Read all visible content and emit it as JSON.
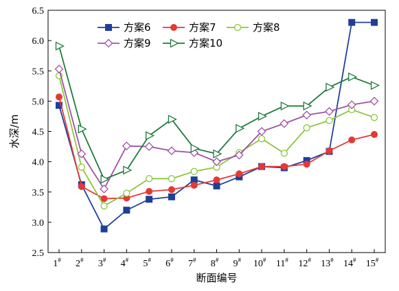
{
  "chart_data": {
    "type": "line",
    "xlabel": "断面编号",
    "ylabel": "水深/m",
    "ylim": [
      2.5,
      6.5
    ],
    "yticks": [
      "2.5",
      "3.0",
      "3.5",
      "4.0",
      "4.5",
      "5.0",
      "5.5",
      "6.0",
      "6.5"
    ],
    "categories": [
      "1",
      "2",
      "3",
      "4",
      "5",
      "6",
      "7",
      "8",
      "9",
      "10",
      "11",
      "12",
      "13",
      "14",
      "15"
    ],
    "category_suffix": "#",
    "grid": false,
    "legend_position": "top",
    "series": [
      {
        "name": "方案6",
        "color": "#1f3f99",
        "marker": "square",
        "values": [
          4.93,
          3.62,
          2.89,
          3.2,
          3.38,
          3.42,
          3.7,
          3.6,
          3.75,
          3.92,
          3.9,
          4.02,
          4.17,
          6.3,
          6.3
        ]
      },
      {
        "name": "方案7",
        "color": "#e53935",
        "marker": "circle",
        "values": [
          5.07,
          3.59,
          3.39,
          3.4,
          3.51,
          3.54,
          3.61,
          3.7,
          3.8,
          3.92,
          3.92,
          3.96,
          4.18,
          4.36,
          4.45
        ]
      },
      {
        "name": "方案8",
        "color": "#8dc63f",
        "marker": "circle-open",
        "values": [
          5.42,
          3.91,
          3.27,
          3.48,
          3.72,
          3.72,
          3.84,
          3.91,
          4.15,
          4.38,
          4.14,
          4.56,
          4.68,
          4.86,
          4.73
        ]
      },
      {
        "name": "方案9",
        "color": "#a052a6",
        "marker": "diamond-open",
        "values": [
          5.53,
          4.13,
          3.55,
          4.26,
          4.25,
          4.18,
          4.15,
          4.0,
          4.11,
          4.5,
          4.63,
          4.77,
          4.83,
          4.94,
          5.0
        ]
      },
      {
        "name": "方案10",
        "color": "#1e7a3c",
        "marker": "triangle-open",
        "values": [
          5.91,
          4.54,
          3.71,
          3.86,
          4.43,
          4.7,
          4.22,
          4.13,
          4.55,
          4.75,
          4.92,
          4.92,
          5.23,
          5.4,
          5.26
        ]
      }
    ]
  }
}
